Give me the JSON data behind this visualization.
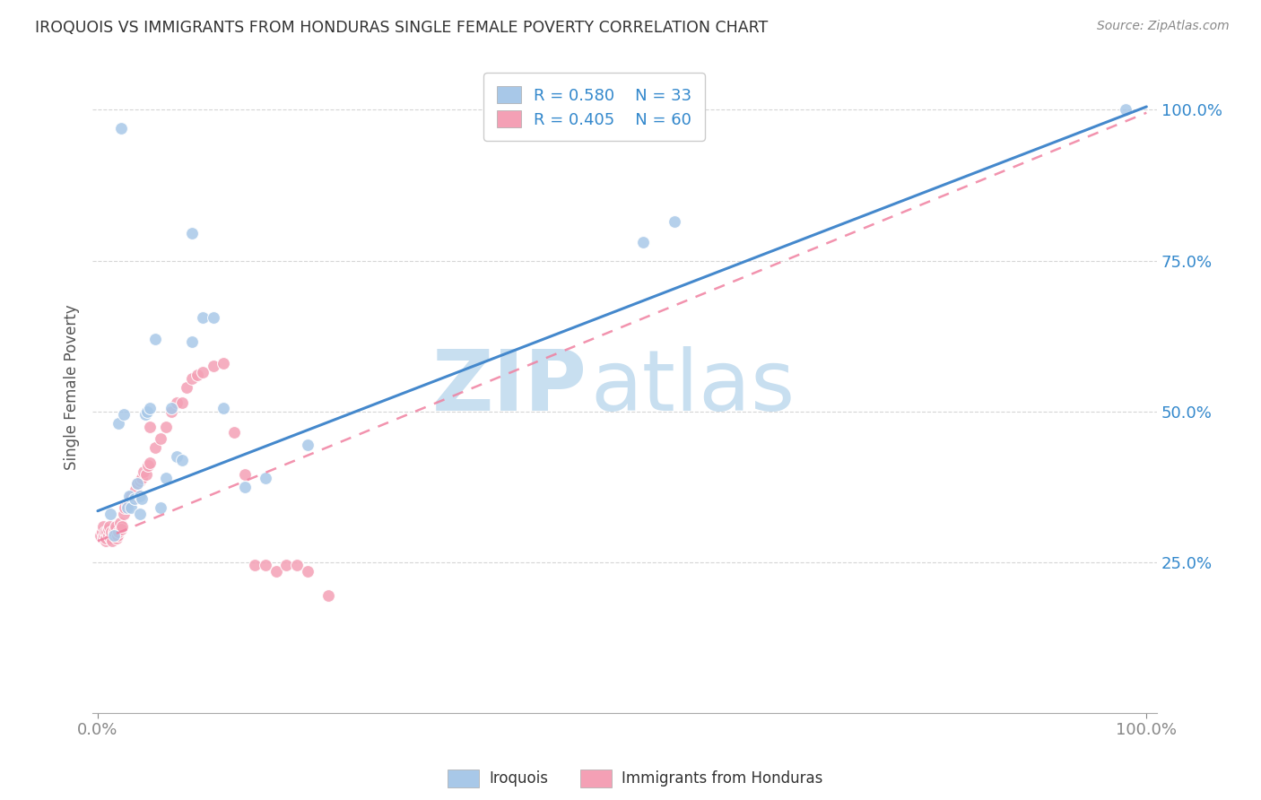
{
  "title": "IROQUOIS VS IMMIGRANTS FROM HONDURAS SINGLE FEMALE POVERTY CORRELATION CHART",
  "source": "Source: ZipAtlas.com",
  "ylabel": "Single Female Poverty",
  "legend_label1": "Iroquois",
  "legend_label2": "Immigrants from Honduras",
  "r1": 0.58,
  "n1": 33,
  "r2": 0.405,
  "n2": 60,
  "color1": "#a8c8e8",
  "color2": "#f4a0b5",
  "line1_color": "#4488cc",
  "line2_color": "#f080a0",
  "watermark_zip_color": "#c8dff0",
  "watermark_atlas_color": "#c8dff0",
  "background": "#ffffff",
  "iroquois_x": [
    0.012,
    0.02,
    0.025,
    0.028,
    0.03,
    0.032,
    0.035,
    0.038,
    0.04,
    0.042,
    0.045,
    0.047,
    0.05,
    0.055,
    0.06,
    0.065,
    0.07,
    0.075,
    0.08,
    0.09,
    0.1,
    0.11,
    0.12,
    0.14,
    0.16,
    0.2,
    0.52,
    0.55,
    0.98,
    0.015,
    0.022,
    0.04,
    0.09
  ],
  "iroquois_y": [
    0.33,
    0.48,
    0.495,
    0.34,
    0.36,
    0.34,
    0.355,
    0.38,
    0.36,
    0.355,
    0.495,
    0.5,
    0.505,
    0.62,
    0.34,
    0.39,
    0.505,
    0.425,
    0.42,
    0.795,
    0.655,
    0.655,
    0.505,
    0.375,
    0.39,
    0.445,
    0.78,
    0.815,
    1.0,
    0.295,
    0.97,
    0.33,
    0.615
  ],
  "honduras_x": [
    0.003,
    0.004,
    0.005,
    0.005,
    0.006,
    0.007,
    0.008,
    0.008,
    0.009,
    0.01,
    0.01,
    0.011,
    0.012,
    0.013,
    0.014,
    0.015,
    0.016,
    0.017,
    0.018,
    0.019,
    0.02,
    0.021,
    0.022,
    0.023,
    0.025,
    0.026,
    0.028,
    0.03,
    0.032,
    0.034,
    0.036,
    0.038,
    0.04,
    0.042,
    0.044,
    0.046,
    0.048,
    0.05,
    0.055,
    0.06,
    0.065,
    0.07,
    0.075,
    0.08,
    0.085,
    0.09,
    0.095,
    0.1,
    0.11,
    0.12,
    0.13,
    0.14,
    0.15,
    0.16,
    0.17,
    0.18,
    0.19,
    0.2,
    0.22,
    0.05
  ],
  "honduras_y": [
    0.295,
    0.3,
    0.29,
    0.31,
    0.295,
    0.3,
    0.285,
    0.29,
    0.3,
    0.295,
    0.305,
    0.31,
    0.29,
    0.3,
    0.285,
    0.3,
    0.305,
    0.31,
    0.29,
    0.295,
    0.3,
    0.315,
    0.305,
    0.31,
    0.33,
    0.34,
    0.345,
    0.35,
    0.36,
    0.355,
    0.37,
    0.38,
    0.385,
    0.39,
    0.4,
    0.395,
    0.41,
    0.415,
    0.44,
    0.455,
    0.475,
    0.5,
    0.515,
    0.515,
    0.54,
    0.555,
    0.56,
    0.565,
    0.575,
    0.58,
    0.465,
    0.395,
    0.245,
    0.245,
    0.235,
    0.245,
    0.245,
    0.235,
    0.195,
    0.475
  ],
  "line1_x0": 0.0,
  "line1_y0": 0.335,
  "line1_x1": 1.0,
  "line1_y1": 1.005,
  "line2_x0": 0.0,
  "line2_y0": 0.285,
  "line2_x1": 1.0,
  "line2_y1": 0.995,
  "xlim_min": -0.005,
  "xlim_max": 1.01,
  "ylim_min": 0.0,
  "ylim_max": 1.08,
  "yticks": [
    0.25,
    0.5,
    0.75,
    1.0
  ],
  "ytick_labels": [
    "25.0%",
    "50.0%",
    "75.0%",
    "100.0%"
  ],
  "xtick_labels": [
    "0.0%",
    "100.0%"
  ]
}
